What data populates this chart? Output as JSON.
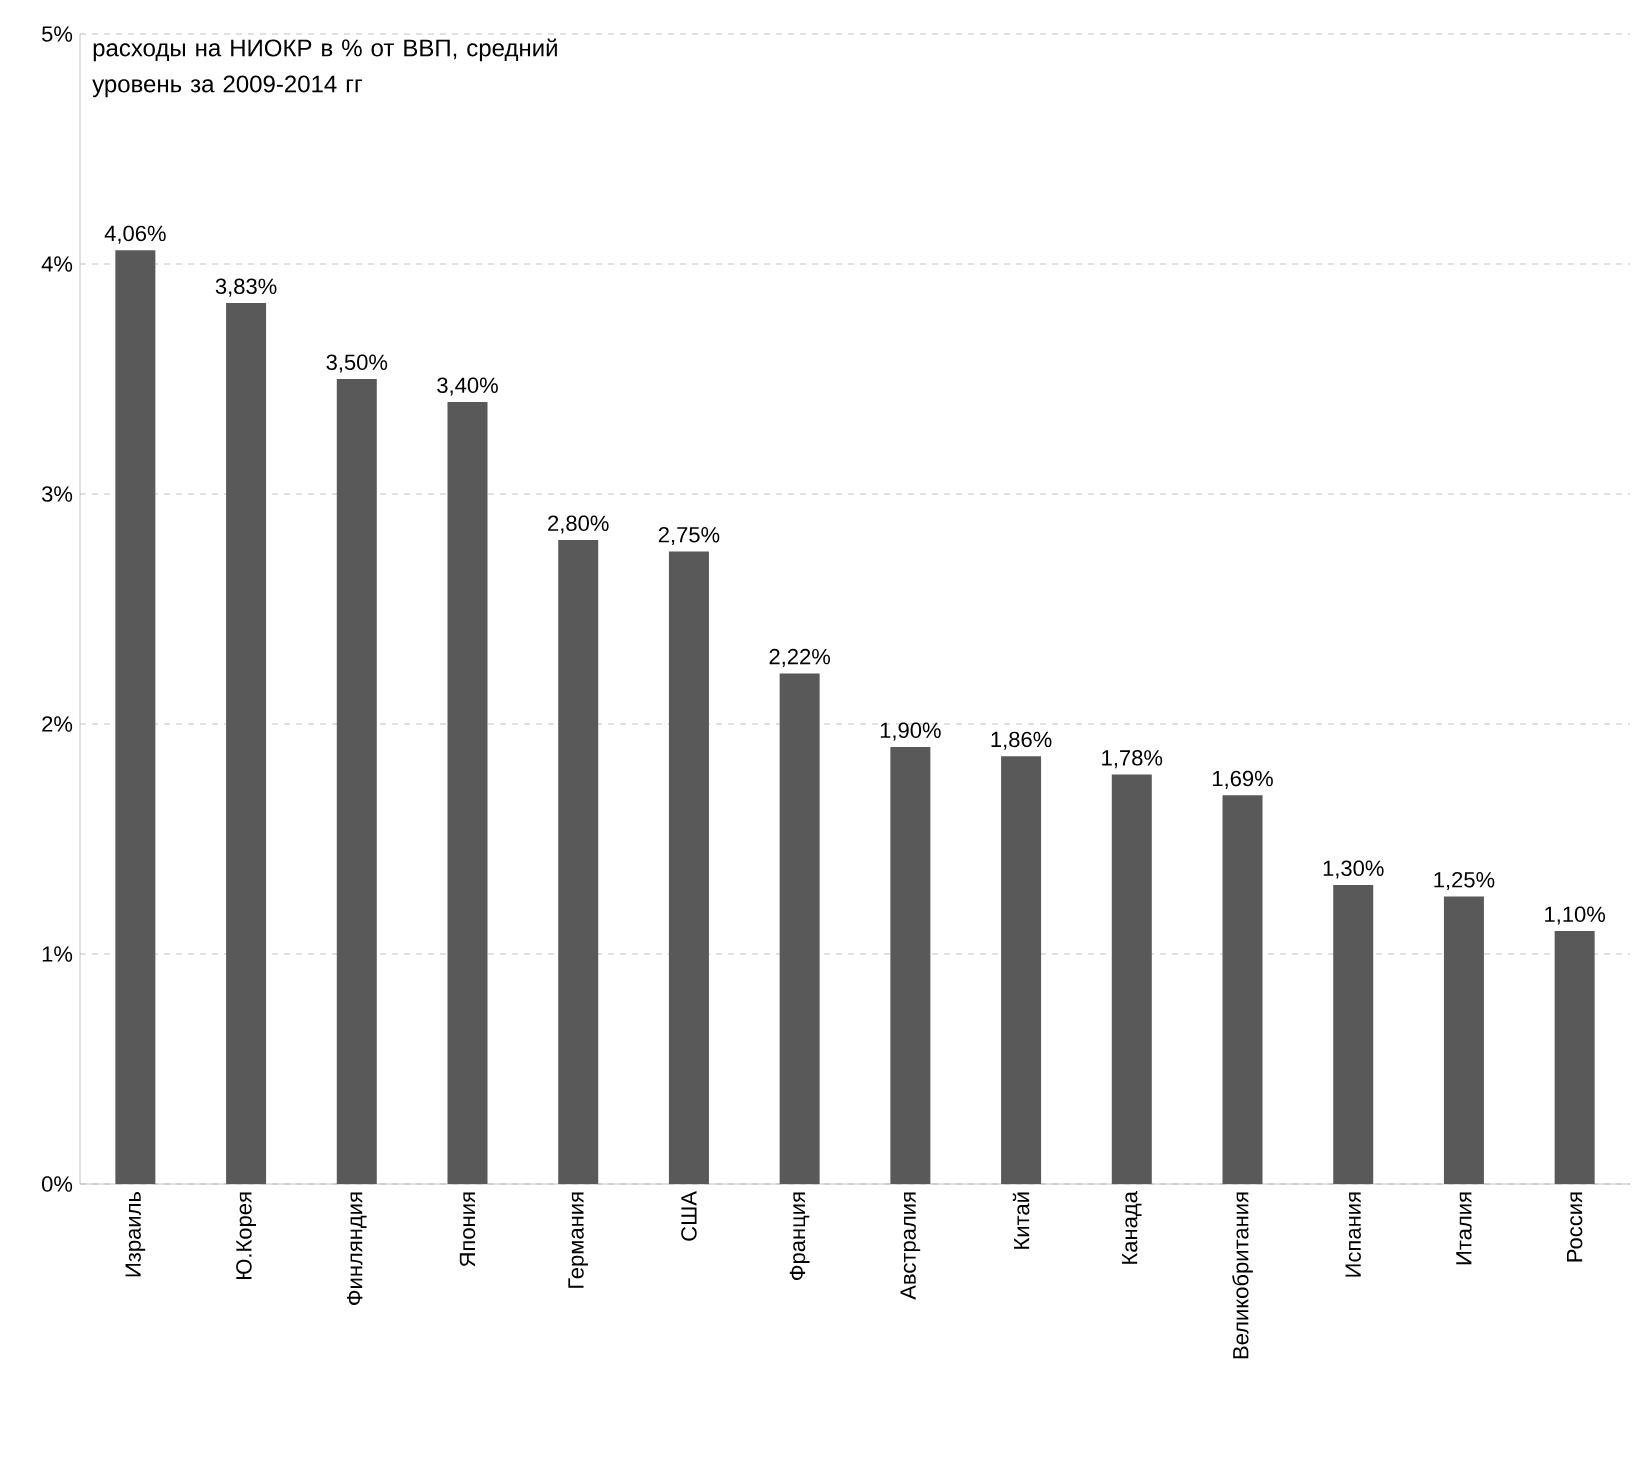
{
  "chart_data": {
    "type": "bar",
    "title": "расходы на НИОКР в % от ВВП, средний уровень за 2009-2014 гг",
    "categories": [
      "Израиль",
      "Ю.Корея",
      "Финляндия",
      "Япония",
      "Германия",
      "США",
      "Франция",
      "Австралия",
      "Китай",
      "Канада",
      "Великобритания",
      "Испания",
      "Италия",
      "Россия"
    ],
    "values": [
      4.06,
      3.83,
      3.5,
      3.4,
      2.8,
      2.75,
      2.22,
      1.9,
      1.86,
      1.78,
      1.69,
      1.3,
      1.25,
      1.1
    ],
    "value_labels": [
      "4,06%",
      "3,83%",
      "3,50%",
      "3,40%",
      "2,80%",
      "2,75%",
      "2,22%",
      "1,90%",
      "1,86%",
      "1,78%",
      "1,69%",
      "1,30%",
      "1,25%",
      "1,10%"
    ],
    "color": "#595959",
    "ylim": [
      0,
      5
    ],
    "yticks": [
      {
        "value": 0,
        "label": "0%"
      },
      {
        "value": 1,
        "label": "1%"
      },
      {
        "value": 2,
        "label": "2%"
      },
      {
        "value": 3,
        "label": "3%"
      },
      {
        "value": 4,
        "label": "4%"
      },
      {
        "value": 5,
        "label": "5%"
      }
    ],
    "grid": "y"
  }
}
